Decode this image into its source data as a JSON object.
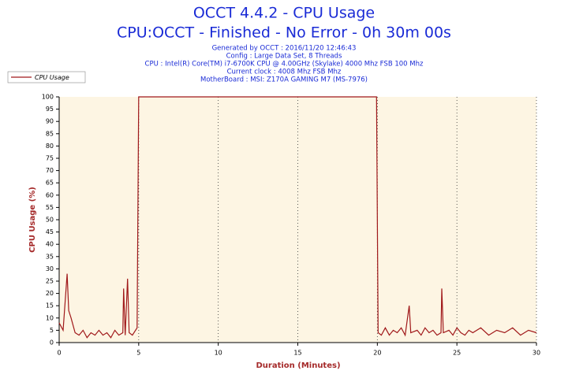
{
  "chart_data": {
    "type": "line",
    "title": [
      "OCCT 4.4.2 - CPU Usage",
      "CPU:OCCT - Finished - No Error - 0h 30m 00s"
    ],
    "subtitle": [
      "Generated by OCCT : 2016/11/20 12:46:43",
      "Config : Large Data Set, 8 Threads",
      "CPU : Intel(R) Core(TM) i7-6700K CPU @ 4.00GHz (Skylake) 4000 Mhz FSB 100 Mhz",
      "Current clock : 4008 Mhz FSB  Mhz",
      "MotherBoard : MSI: Z170A GAMING M7 (MS-7976)"
    ],
    "xlabel": "Duration (Minutes)",
    "ylabel": "CPU Usage (%)",
    "x": [
      0,
      0.25,
      0.5,
      0.6,
      0.75,
      1,
      1.25,
      1.5,
      1.75,
      2,
      2.25,
      2.5,
      2.75,
      3,
      3.25,
      3.5,
      3.75,
      4,
      4.05,
      4.15,
      4.3,
      4.4,
      4.6,
      4.9,
      5,
      19.95,
      20,
      20.05,
      20.25,
      20.5,
      20.75,
      21,
      21.25,
      21.5,
      21.75,
      22,
      22.1,
      22.5,
      22.75,
      23,
      23.25,
      23.5,
      23.75,
      24,
      24.05,
      24.15,
      24.5,
      24.75,
      25,
      25.25,
      25.5,
      25.75,
      26,
      26.5,
      27,
      27.5,
      28,
      28.5,
      29,
      29.5,
      30
    ],
    "series": [
      {
        "name": "CPU Usage",
        "color": "#a0181a",
        "values": [
          8,
          5,
          28,
          13,
          10,
          4,
          3,
          5,
          2,
          4,
          3,
          5,
          3,
          4,
          2,
          5,
          3,
          4,
          22,
          3,
          26,
          4,
          3,
          6,
          100,
          100,
          52,
          4,
          3,
          6,
          3,
          5,
          4,
          6,
          3,
          15,
          4,
          5,
          3,
          6,
          4,
          5,
          3,
          4,
          22,
          4,
          5,
          3,
          6,
          4,
          3,
          5,
          4,
          6,
          3,
          5,
          4,
          6,
          3,
          5,
          4
        ]
      }
    ],
    "xlim": [
      0,
      30
    ],
    "xticks": [
      0,
      5,
      10,
      15,
      20,
      25,
      30
    ],
    "ylim": [
      0,
      100
    ],
    "yticks": [
      0,
      5,
      10,
      15,
      20,
      25,
      30,
      35,
      40,
      45,
      50,
      55,
      60,
      65,
      70,
      75,
      80,
      85,
      90,
      95,
      100
    ],
    "grid": true,
    "legend": "top-left"
  }
}
